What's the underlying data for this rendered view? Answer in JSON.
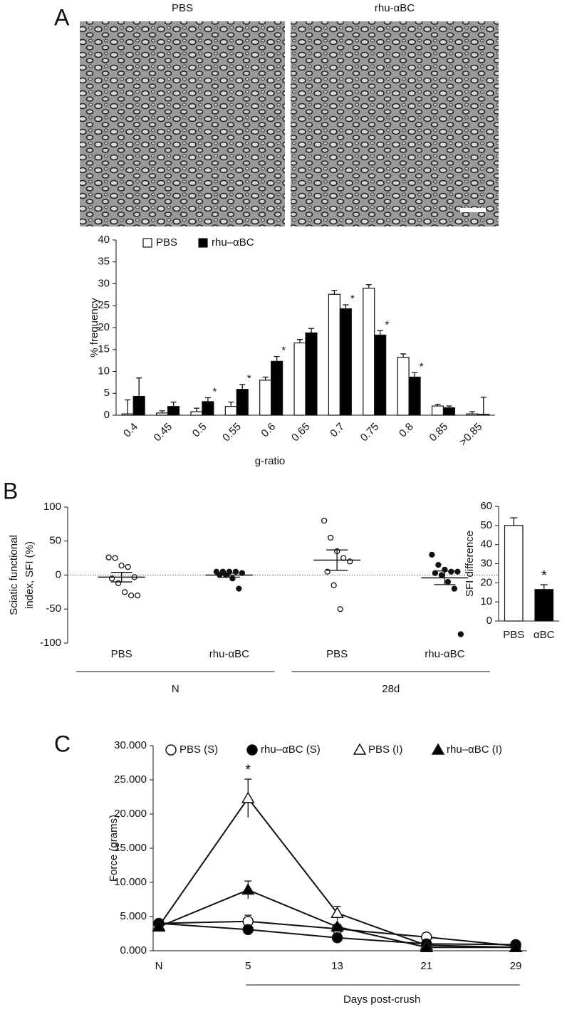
{
  "panel_labels": [
    "A",
    "B",
    "C"
  ],
  "micrographs": [
    "PBS",
    "rhu-αBC"
  ],
  "chart_data": [
    {
      "type": "bar",
      "xlabel": "g-ratio",
      "ylabel": "% frequency",
      "categories": [
        "0.4",
        "0.45",
        "0.5",
        "0.55",
        "0.6",
        "0.65",
        "0.7",
        "0.75",
        "0.8",
        "0.85",
        ">0.85"
      ],
      "series": [
        {
          "name": "PBS",
          "color": "#ffffff",
          "values": [
            0.3,
            0.5,
            0.8,
            2,
            8,
            16.5,
            27.6,
            29,
            13.2,
            2.1,
            0.3
          ],
          "errors": [
            3.2,
            0.5,
            0.8,
            1,
            0.7,
            0.8,
            0.9,
            0.8,
            0.8,
            0.4,
            0.5
          ]
        },
        {
          "name": "rhu–αBC",
          "color": "#000000",
          "values": [
            4.3,
            2,
            3.1,
            5.9,
            12.3,
            18.8,
            24.3,
            18.3,
            8.7,
            1.7,
            0.2
          ],
          "errors": [
            4.2,
            1,
            0.9,
            1.1,
            1.1,
            1,
            0.9,
            1,
            1,
            0.4,
            3.9
          ]
        }
      ],
      "significance": [
        null,
        null,
        "*",
        "*",
        "*",
        null,
        "*",
        "*",
        "*",
        null,
        null
      ],
      "ylim": [
        0,
        40
      ],
      "yticks": [
        0,
        5,
        10,
        15,
        20,
        25,
        30,
        35,
        40
      ],
      "legend": "top-left"
    },
    {
      "type": "dot",
      "ylabel": [
        "Sciatic functional",
        "index, SFI (%)"
      ],
      "categories": [
        "PBS",
        "rhu-αBC",
        "PBS",
        "rhu-αBC"
      ],
      "groups": [
        "N",
        "28d"
      ],
      "markers": [
        "open",
        "filled",
        "open",
        "filled"
      ],
      "points": [
        [
          26,
          25,
          14,
          12,
          -3,
          -5,
          -12,
          -25,
          -30,
          -30
        ],
        [
          5,
          5,
          5,
          5,
          3,
          0,
          0,
          -5,
          -20
        ],
        [
          80,
          55,
          35,
          25,
          20,
          5,
          -15,
          -50
        ],
        [
          30,
          15,
          8,
          5,
          5,
          3,
          0,
          -10,
          -20,
          -87
        ]
      ],
      "means": [
        -3,
        0,
        22,
        -4
      ],
      "sems": [
        7,
        3,
        15,
        10
      ],
      "ylim": [
        -100,
        100
      ],
      "yticks": [
        -100,
        -50,
        0,
        50,
        100
      ],
      "zero_line": true
    },
    {
      "type": "bar",
      "ylabel": "SFI difference",
      "categories": [
        "PBS",
        "αBC"
      ],
      "values": [
        50,
        16.5
      ],
      "errors": [
        4,
        2.5
      ],
      "colors": [
        "#ffffff",
        "#000000"
      ],
      "significance": [
        null,
        "*"
      ],
      "ylim": [
        0,
        60
      ],
      "yticks": [
        0,
        10,
        20,
        30,
        40,
        50,
        60
      ]
    },
    {
      "type": "line",
      "xlabel": "Days post-crush",
      "ylabel": "Force (grams)",
      "categories": [
        "N",
        "5",
        "13",
        "21",
        "29"
      ],
      "series": [
        {
          "name": "PBS (S)",
          "marker": "circle",
          "color": "#ffffff",
          "values": [
            4.0,
            4.3,
            3.2,
            2.0,
            0.7
          ],
          "errors": [
            0.5,
            0.9,
            0.4,
            0.3,
            0.1
          ]
        },
        {
          "name": "rhu–αBC (S)",
          "marker": "circle",
          "color": "#000000",
          "values": [
            4.0,
            3.1,
            1.9,
            1.0,
            0.9
          ],
          "errors": [
            0.4,
            0.3,
            0.3,
            0.2,
            0.1
          ]
        },
        {
          "name": "PBS (I)",
          "marker": "triangle",
          "color": "#ffffff",
          "values": [
            3.6,
            22.3,
            5.5,
            0.8,
            0.5
          ],
          "errors": [
            0.3,
            2.8,
            1.0,
            0.2,
            0.1
          ]
        },
        {
          "name": "rhu–αBC (I)",
          "marker": "triangle",
          "color": "#000000",
          "values": [
            3.5,
            8.9,
            3.5,
            0.5,
            0.5
          ],
          "errors": [
            0.3,
            1.3,
            0.4,
            0.1,
            0.1
          ]
        }
      ],
      "significance": [
        null,
        "*",
        null,
        null,
        null
      ],
      "ylim": [
        0,
        30
      ],
      "yticks": [
        {
          "value": 0,
          "label": "0.000"
        },
        {
          "value": 5,
          "label": "5.000"
        },
        {
          "value": 10,
          "label": "10.000"
        },
        {
          "value": 15,
          "label": "15.000"
        },
        {
          "value": 20,
          "label": "20.000"
        },
        {
          "value": 25,
          "label": "25.000"
        },
        {
          "value": 30,
          "label": "30.000"
        }
      ],
      "legend": "top"
    }
  ]
}
